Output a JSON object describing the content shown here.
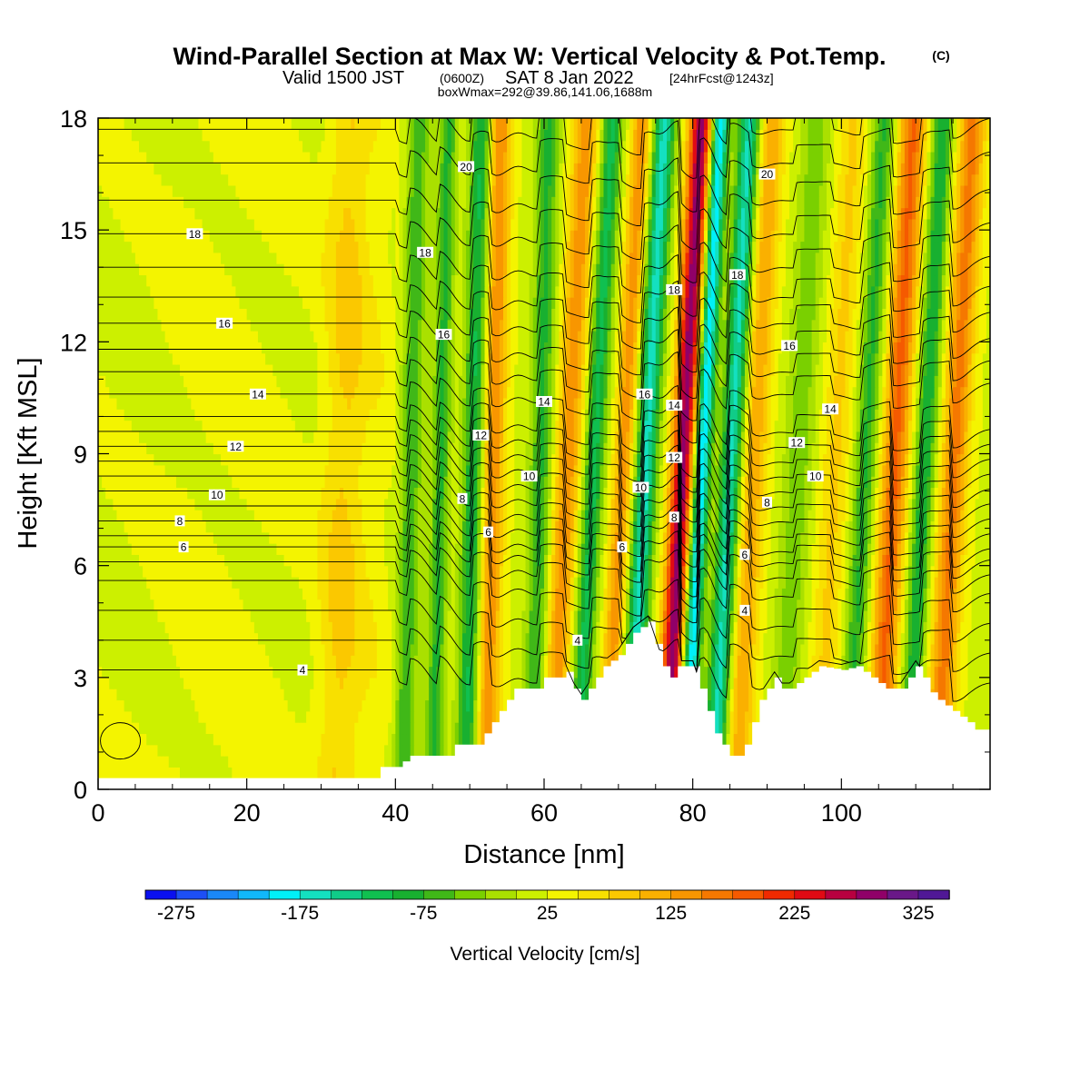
{
  "title": {
    "main": "Wind-Parallel Section at Max W: Vertical Velocity & Pot.Temp.",
    "copyright": "(C)",
    "valid_prefix": "Valid 1500 JST",
    "valid_zulu": "(0600Z)",
    "valid_date": "SAT 8 Jan 2022",
    "forecast": "[24hrFcst@1243z]",
    "boxwmax": "boxWmax=292@39.86,141.06,1688m"
  },
  "chart_data": {
    "type": "heatmap",
    "title": "Wind-Parallel Section at Max W: Vertical Velocity & Pot.Temp.",
    "xlabel": "Distance [nm]",
    "ylabel": "Height [Kft MSL]",
    "xlim": [
      0,
      120
    ],
    "ylim": [
      0,
      18
    ],
    "x_ticks": [
      0,
      20,
      40,
      60,
      80,
      100
    ],
    "x_tick_labels": [
      "0",
      "20",
      "40",
      "60",
      "80",
      "100"
    ],
    "y_ticks": [
      0,
      3,
      6,
      9,
      12,
      15,
      18
    ],
    "y_tick_labels": [
      "0",
      "3",
      "6",
      "9",
      "12",
      "15",
      "18"
    ],
    "colorbar": {
      "title": "Vertical Velocity [cm/s]",
      "tick_labels": [
        "-275",
        "-175",
        "-75",
        "25",
        "125",
        "225",
        "325"
      ],
      "tick_values": [
        -275,
        -175,
        -75,
        25,
        125,
        225,
        325
      ],
      "levels": [
        -300,
        -275,
        -250,
        -225,
        -200,
        -175,
        -150,
        -125,
        -100,
        -75,
        -50,
        -25,
        0,
        25,
        50,
        75,
        100,
        125,
        150,
        175,
        200,
        225,
        250,
        275,
        300,
        325,
        350
      ],
      "colors": [
        "#0a10f0",
        "#1d4ff5",
        "#1a88f8",
        "#11b8fb",
        "#00f0f8",
        "#14e0c0",
        "#10cc88",
        "#10c050",
        "#18b030",
        "#40b818",
        "#7ad000",
        "#aae000",
        "#ccf000",
        "#f4f400",
        "#f8e000",
        "#fbc800",
        "#fab000",
        "#f89600",
        "#f57800",
        "#f55a00",
        "#f02a00",
        "#e00a14",
        "#b80040",
        "#900068",
        "#6a1888",
        "#501896"
      ]
    },
    "terrain_kft": [
      [
        0,
        0.3
      ],
      [
        37,
        0.3
      ],
      [
        38,
        0.6
      ],
      [
        40,
        0.6
      ],
      [
        42,
        0.9
      ],
      [
        47,
        0.9
      ],
      [
        48,
        1.2
      ],
      [
        51,
        1.2
      ],
      [
        52,
        1.5
      ],
      [
        53,
        1.8
      ],
      [
        54,
        2.1
      ],
      [
        55,
        2.4
      ],
      [
        56,
        2.7
      ],
      [
        59,
        2.7
      ],
      [
        60,
        3.0
      ],
      [
        62,
        3.0
      ],
      [
        63,
        3.15
      ],
      [
        64,
        2.7
      ],
      [
        65,
        2.4
      ],
      [
        66,
        2.7
      ],
      [
        67,
        3.0
      ],
      [
        68,
        3.3
      ],
      [
        70,
        3.6
      ],
      [
        72,
        4.2
      ],
      [
        74,
        4.5
      ],
      [
        75,
        3.9
      ],
      [
        76,
        3.3
      ],
      [
        77,
        3.0
      ],
      [
        78,
        3.3
      ],
      [
        80,
        3.3
      ],
      [
        81,
        2.7
      ],
      [
        82,
        2.1
      ],
      [
        83,
        1.5
      ],
      [
        84,
        1.2
      ],
      [
        85,
        0.9
      ],
      [
        86,
        0.9
      ],
      [
        87,
        1.2
      ],
      [
        88,
        1.8
      ],
      [
        89,
        2.4
      ],
      [
        90,
        2.7
      ],
      [
        91,
        3.0
      ],
      [
        92,
        2.7
      ],
      [
        93,
        2.7
      ],
      [
        95,
        3.0
      ],
      [
        97,
        3.3
      ],
      [
        100,
        3.2
      ],
      [
        102,
        3.3
      ],
      [
        104,
        3.0
      ],
      [
        106,
        2.7
      ],
      [
        108,
        2.7
      ],
      [
        109,
        3.0
      ],
      [
        110,
        3.3
      ],
      [
        111,
        3.0
      ],
      [
        112,
        2.6
      ],
      [
        113,
        2.4
      ],
      [
        115,
        2.1
      ],
      [
        117,
        1.8
      ],
      [
        118,
        1.6
      ],
      [
        120,
        1.6
      ]
    ],
    "vertical_velocity_bands": [
      {
        "x": 13,
        "w": 6,
        "amp": 10
      },
      {
        "x": 22,
        "w": 7,
        "amp": 8
      },
      {
        "x": 33,
        "w": 3,
        "amp": 60
      },
      {
        "x": 38,
        "w": 3,
        "amp": 15
      },
      {
        "x": 42,
        "w": 1.5,
        "amp": -90
      },
      {
        "x": 46,
        "w": 1.2,
        "amp": -100
      },
      {
        "x": 50.5,
        "w": 1.5,
        "amp": -130
      },
      {
        "x": 53,
        "w": 1.6,
        "amp": 130
      },
      {
        "x": 59.5,
        "w": 1.5,
        "amp": -100
      },
      {
        "x": 63,
        "w": 1.8,
        "amp": 120
      },
      {
        "x": 66.5,
        "w": 1.4,
        "amp": -130
      },
      {
        "x": 70.5,
        "w": 1.4,
        "amp": 120
      },
      {
        "x": 73.5,
        "w": 1.5,
        "amp": -180
      },
      {
        "x": 78.5,
        "w": 1.6,
        "amp": 270
      },
      {
        "x": 81,
        "w": 1.2,
        "amp": -230
      },
      {
        "x": 85,
        "w": 1.5,
        "amp": -180
      },
      {
        "x": 88,
        "w": 1.8,
        "amp": 100
      },
      {
        "x": 94,
        "w": 2,
        "amp": -60
      },
      {
        "x": 99,
        "w": 2,
        "amp": 60
      },
      {
        "x": 103,
        "w": 1.5,
        "amp": -100
      },
      {
        "x": 107,
        "w": 1.8,
        "amp": 160
      },
      {
        "x": 111,
        "w": 1.4,
        "amp": -120
      },
      {
        "x": 115,
        "w": 1.8,
        "amp": 140
      }
    ],
    "isentrope_labels": [
      {
        "text": "20",
        "x": 49.5,
        "y": 16.7
      },
      {
        "text": "20",
        "x": 90,
        "y": 16.5
      },
      {
        "text": "18",
        "x": 13,
        "y": 14.9
      },
      {
        "text": "18",
        "x": 44,
        "y": 14.4
      },
      {
        "text": "18",
        "x": 86,
        "y": 13.8
      },
      {
        "text": "18",
        "x": 77.5,
        "y": 13.4
      },
      {
        "text": "16",
        "x": 17,
        "y": 12.5
      },
      {
        "text": "16",
        "x": 46.5,
        "y": 12.2
      },
      {
        "text": "16",
        "x": 93,
        "y": 11.9
      },
      {
        "text": "14",
        "x": 21.5,
        "y": 10.6
      },
      {
        "text": "14",
        "x": 60,
        "y": 10.4
      },
      {
        "text": "16",
        "x": 73.5,
        "y": 10.6
      },
      {
        "text": "14",
        "x": 77.5,
        "y": 10.3
      },
      {
        "text": "14",
        "x": 98.5,
        "y": 10.2
      },
      {
        "text": "12",
        "x": 18.5,
        "y": 9.2
      },
      {
        "text": "12",
        "x": 51.5,
        "y": 9.5
      },
      {
        "text": "12",
        "x": 94,
        "y": 9.3
      },
      {
        "text": "12",
        "x": 77.5,
        "y": 8.9
      },
      {
        "text": "10",
        "x": 16,
        "y": 7.9
      },
      {
        "text": "10",
        "x": 58,
        "y": 8.4
      },
      {
        "text": "10",
        "x": 96.5,
        "y": 8.4
      },
      {
        "text": "10",
        "x": 73,
        "y": 8.1
      },
      {
        "text": "8",
        "x": 11,
        "y": 7.2
      },
      {
        "text": "8",
        "x": 49,
        "y": 7.8
      },
      {
        "text": "8",
        "x": 90,
        "y": 7.7
      },
      {
        "text": "8",
        "x": 77.5,
        "y": 7.3
      },
      {
        "text": "6",
        "x": 11.5,
        "y": 6.5
      },
      {
        "text": "6",
        "x": 52.5,
        "y": 6.9
      },
      {
        "text": "6",
        "x": 70.5,
        "y": 6.5
      },
      {
        "text": "6",
        "x": 87,
        "y": 6.3
      },
      {
        "text": "4",
        "x": 27.5,
        "y": 3.2
      },
      {
        "text": "4",
        "x": 64.5,
        "y": 4.0
      },
      {
        "text": "4",
        "x": 87,
        "y": 4.8
      }
    ]
  }
}
